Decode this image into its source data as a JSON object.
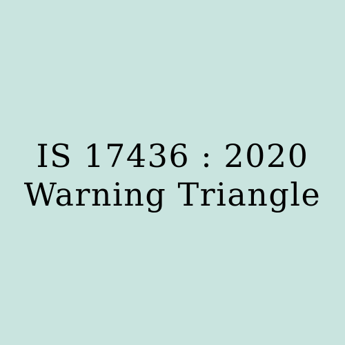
{
  "cover": {
    "standard_number": "IS 17436 : 2020",
    "title": "Warning Triangle",
    "background_color": "#c9e4df",
    "text_color": "#000000"
  }
}
